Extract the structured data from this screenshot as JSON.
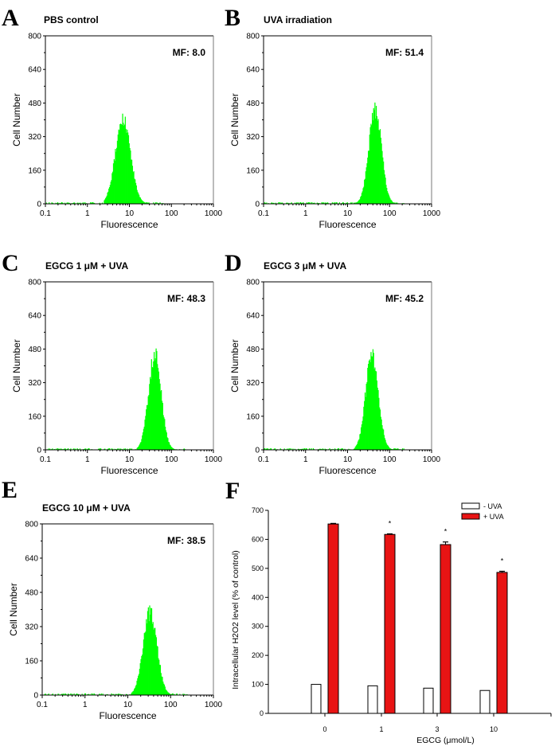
{
  "figure": {
    "panels": [
      "A",
      "B",
      "C",
      "D",
      "E",
      "F"
    ]
  },
  "chart_data": [
    {
      "type": "area",
      "panel": "A",
      "title": "PBS control",
      "annotation": "MF: 8.0",
      "mean_fluorescence": 8.0,
      "xlabel": "Fluorescence",
      "ylabel": "Cell Number",
      "xscale": "log",
      "xlim": [
        0.1,
        1000
      ],
      "ylim": [
        0,
        800
      ],
      "xticks": [
        "0.1",
        "1",
        "10",
        "100",
        "1000"
      ],
      "yticks": [
        "0",
        "160",
        "320",
        "480",
        "640",
        "800"
      ],
      "color": "#00ff00",
      "peak": {
        "x": 7.0,
        "y": 415,
        "log_width": 0.18,
        "range": [
          2.5,
          60
        ]
      }
    },
    {
      "type": "area",
      "panel": "B",
      "title": "UVA irradiation",
      "annotation": "MF: 51.4",
      "mean_fluorescence": 51.4,
      "xlabel": "Fluorescence",
      "ylabel": "Cell Number",
      "xscale": "log",
      "xlim": [
        0.1,
        1000
      ],
      "ylim": [
        0,
        800
      ],
      "xticks": [
        "0.1",
        "1",
        "10",
        "100",
        "1000"
      ],
      "yticks": [
        "0",
        "160",
        "320",
        "480",
        "640",
        "800"
      ],
      "color": "#00ff00",
      "peak": {
        "x": 45,
        "y": 470,
        "log_width": 0.15,
        "range": [
          15,
          200
        ]
      }
    },
    {
      "type": "area",
      "panel": "C",
      "title": "EGCG 1 μM + UVA",
      "annotation": "MF: 48.3",
      "mean_fluorescence": 48.3,
      "xlabel": "Fluorescence",
      "ylabel": "Cell Number",
      "xscale": "log",
      "xlim": [
        0.1,
        1000
      ],
      "ylim": [
        0,
        800
      ],
      "xticks": [
        "0.1",
        "1",
        "10",
        "100",
        "1000"
      ],
      "yticks": [
        "0",
        "160",
        "320",
        "480",
        "640",
        "800"
      ],
      "color": "#00ff00",
      "peak": {
        "x": 40,
        "y": 475,
        "log_width": 0.15,
        "range": [
          15,
          200
        ]
      }
    },
    {
      "type": "area",
      "panel": "D",
      "title": "EGCG 3 μM + UVA",
      "annotation": "MF: 45.2",
      "mean_fluorescence": 45.2,
      "xlabel": "Fluorescence",
      "ylabel": "Cell Number",
      "xscale": "log",
      "xlim": [
        0.1,
        1000
      ],
      "ylim": [
        0,
        800
      ],
      "xticks": [
        "0.1",
        "1",
        "10",
        "100",
        "1000"
      ],
      "yticks": [
        "0",
        "160",
        "320",
        "480",
        "640",
        "800"
      ],
      "color": "#00ff00",
      "peak": {
        "x": 38,
        "y": 480,
        "log_width": 0.15,
        "range": [
          15,
          200
        ]
      }
    },
    {
      "type": "area",
      "panel": "E",
      "title": "EGCG 10 μM + UVA",
      "annotation": "MF: 38.5",
      "mean_fluorescence": 38.5,
      "xlabel": "Fluorescence",
      "ylabel": "Cell Number",
      "xscale": "log",
      "xlim": [
        0.1,
        1000
      ],
      "ylim": [
        0,
        800
      ],
      "xticks": [
        "0.1",
        "1",
        "10",
        "100",
        "1000"
      ],
      "yticks": [
        "0",
        "160",
        "320",
        "480",
        "640",
        "800"
      ],
      "color": "#00ff00",
      "peak": {
        "x": 33,
        "y": 410,
        "log_width": 0.16,
        "range": [
          12,
          220
        ]
      }
    },
    {
      "type": "bar",
      "panel": "F",
      "title": "",
      "xlabel": "EGCG (μmol/L)",
      "ylabel": "Intracellular H2O2 level (% of control)",
      "ylim": [
        0,
        700
      ],
      "yticks": [
        "0",
        "100",
        "200",
        "300",
        "400",
        "500",
        "600",
        "700"
      ],
      "categories": [
        "0",
        "1",
        "3",
        "10"
      ],
      "series": [
        {
          "name": "- UVA",
          "color": "#ffffff",
          "values": [
            100,
            95,
            87,
            79
          ],
          "errors": [
            0,
            0,
            0,
            0
          ]
        },
        {
          "name": "+ UVA",
          "color": "#e81414",
          "values": [
            653,
            617,
            582,
            486
          ],
          "errors": [
            2,
            2,
            9,
            4
          ]
        }
      ],
      "significance": [
        "",
        "*",
        "*",
        "*"
      ],
      "legend": "top-right"
    }
  ]
}
